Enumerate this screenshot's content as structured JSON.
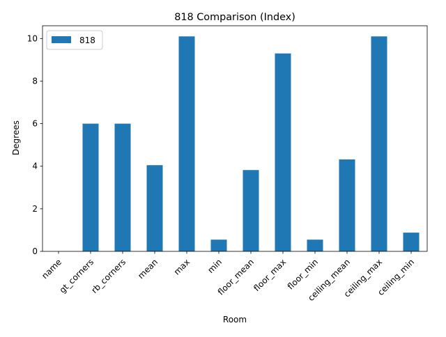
{
  "chart_data": {
    "type": "bar",
    "title": "818 Comparison (Index)",
    "xlabel": "Room",
    "ylabel": "Degrees",
    "categories": [
      "name",
      "gt_corners",
      "rb_corners",
      "mean",
      "max",
      "min",
      "floor_mean",
      "floor_max",
      "floor_min",
      "ceiling_mean",
      "ceiling_max",
      "ceiling_min"
    ],
    "series": [
      {
        "name": "818",
        "color": "#1f77b4",
        "values": [
          0,
          6.0,
          6.0,
          4.05,
          10.1,
          0.55,
          3.82,
          9.3,
          0.55,
          4.32,
          10.1,
          0.88
        ]
      }
    ],
    "ylim": [
      0,
      10.6
    ],
    "yticks": [
      0,
      2,
      4,
      6,
      8,
      10
    ],
    "ytick_labels": [
      "0",
      "2",
      "4",
      "6",
      "8",
      "10"
    ],
    "legend_position": "top-left",
    "grid": false
  }
}
